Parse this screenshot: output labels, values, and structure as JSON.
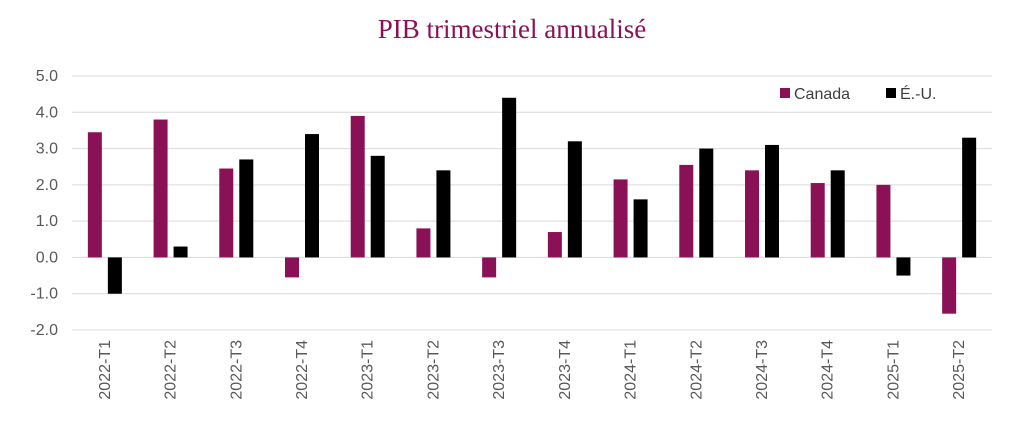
{
  "chart_data": {
    "type": "bar",
    "title": "PIB trimestriel annualisé",
    "xlabel": "",
    "ylabel": "",
    "categories": [
      "2022-T1",
      "2022-T2",
      "2022-T3",
      "2022-T4",
      "2023-T1",
      "2023-T2",
      "2023-T3",
      "2023-T4",
      "2024-T1",
      "2024-T2",
      "2024-T3",
      "2024-T4",
      "2025-T1",
      "2025-T2"
    ],
    "series": [
      {
        "name": "Canada",
        "color": "#8B1157",
        "values": [
          3.45,
          3.8,
          2.45,
          -0.55,
          3.9,
          0.8,
          -0.55,
          0.7,
          2.15,
          2.55,
          2.4,
          2.05,
          2.0,
          -1.55
        ]
      },
      {
        "name": "É.-U.",
        "color": "#000000",
        "values": [
          -1.0,
          0.3,
          2.7,
          3.4,
          2.8,
          2.4,
          4.4,
          3.2,
          1.6,
          3.0,
          3.1,
          2.4,
          -0.5,
          3.3
        ]
      }
    ],
    "ylim": [
      -2.0,
      5.0
    ],
    "yticks": [
      "5.0",
      "4.0",
      "3.0",
      "2.0",
      "1.0",
      "0.0",
      "-1.0",
      "-2.0"
    ],
    "grid": true,
    "legend_position": "top-right",
    "title_color": "#8B1157"
  }
}
